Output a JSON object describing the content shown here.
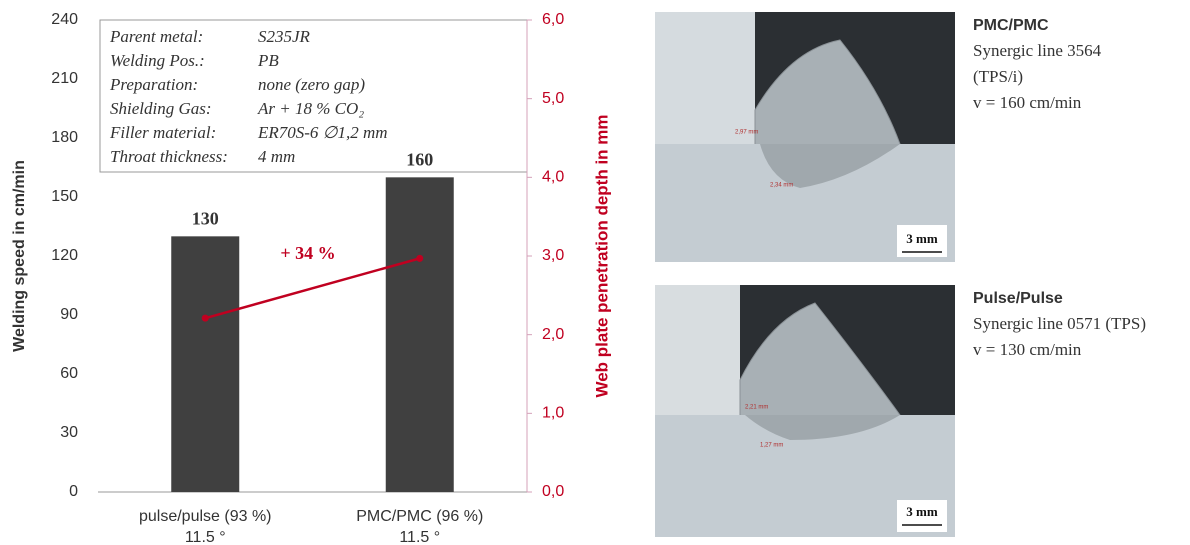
{
  "chart_data": {
    "type": "bar",
    "y_label": "Welding speed in cm/min",
    "y2_label": "Web plate penetration depth in mm",
    "categories": [
      "pulse/pulse (93 %)",
      "PMC/PMC (96 %)"
    ],
    "category_notes": [
      "11.5 °",
      "11.5 °"
    ],
    "values": [
      130,
      160
    ],
    "color": "#404040",
    "series": [
      {
        "values": [
          2.21,
          2.97
        ],
        "color": "#c00020",
        "axis": "y2"
      }
    ],
    "ylim": [
      0,
      240
    ],
    "yticks": [
      0,
      30,
      60,
      90,
      120,
      150,
      180,
      210,
      240
    ],
    "y2lim": [
      0,
      6
    ],
    "y2ticks": [
      {
        "value": 0,
        "label": "0,0"
      },
      {
        "value": 1,
        "label": "1,0"
      },
      {
        "value": 2,
        "label": "2,0"
      },
      {
        "value": 3,
        "label": "3,0"
      },
      {
        "value": 4,
        "label": "4,0"
      },
      {
        "value": 5,
        "label": "5,0"
      },
      {
        "value": 6,
        "label": "6,0"
      }
    ],
    "annotation": "+ 34 %",
    "info": [
      [
        "Parent metal:",
        "S235JR"
      ],
      [
        "Welding Pos.:",
        "PB"
      ],
      [
        "Preparation:",
        "none (zero gap)"
      ],
      [
        "Shielding Gas:",
        "Ar + 18 % CO₂"
      ],
      [
        "Filler material:",
        "ER70S-6 ∅1,2 mm"
      ],
      [
        "Throat thickness:",
        "4 mm"
      ]
    ]
  },
  "micrographs": [
    {
      "title": "PMC/PMC",
      "lines": [
        "Synergic line 3564",
        "(TPS/i)",
        "v = 160 cm/min"
      ],
      "scale": "3 mm",
      "measures": [
        "2,97 mm",
        "2,34 mm"
      ]
    },
    {
      "title": "Pulse/Pulse",
      "lines": [
        "Synergic line 0571 (TPS)",
        "v = 130 cm/min"
      ],
      "scale": "3 mm",
      "measures": [
        "2,21 mm",
        "1,27 mm"
      ]
    }
  ]
}
